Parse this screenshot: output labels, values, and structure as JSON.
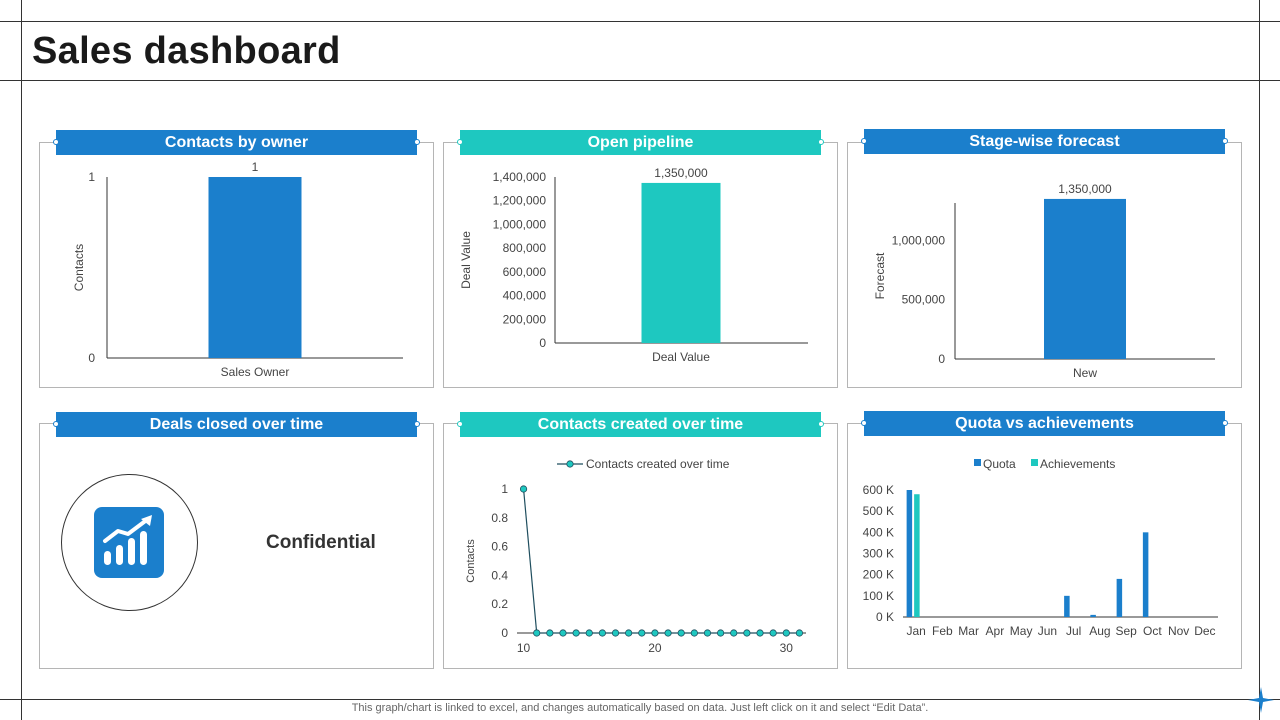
{
  "page": {
    "title": "Sales dashboard",
    "footer": "This graph/chart is linked to excel,  and changes automatically based on data. Just left click on it and select “Edit Data”."
  },
  "colors": {
    "blue": "#1b7fcc",
    "teal": "#1ec8c0",
    "dark_teal": "#16a39c",
    "line": "#1f4e5e"
  },
  "panels": {
    "contacts_by_owner": {
      "title": "Contacts by owner"
    },
    "open_pipeline": {
      "title": "Open pipeline"
    },
    "stage_forecast": {
      "title": "Stage-wise forecast"
    },
    "deals_closed": {
      "title": "Deals closed over time",
      "label": "Confidential",
      "icon": "growth-chart-icon"
    },
    "contacts_created": {
      "title": "Contacts created over time"
    },
    "quota_vs_achievements": {
      "title": "Quota vs achievements"
    }
  },
  "chart_data": [
    {
      "id": "contacts_by_owner",
      "type": "bar",
      "categories": [
        "Sales Owner"
      ],
      "values": [
        1
      ],
      "data_labels": [
        "1"
      ],
      "xlabel": "Sales Owner",
      "ylabel": "Contacts",
      "ylim": [
        0,
        1
      ],
      "yticks": [
        0,
        1
      ],
      "ytick_labels": [
        "0",
        "1"
      ]
    },
    {
      "id": "open_pipeline",
      "type": "bar",
      "categories": [
        "Deal Value"
      ],
      "values": [
        1350000
      ],
      "data_labels": [
        "1,350,000"
      ],
      "xlabel": "Deal Value",
      "ylabel": "Deal Value",
      "ylim": [
        0,
        1400000
      ],
      "yticks": [
        0,
        200000,
        400000,
        600000,
        800000,
        1000000,
        1200000,
        1400000
      ],
      "ytick_labels": [
        "0",
        "200,000",
        "400,000",
        "600,000",
        "800,000",
        "1,000,000",
        "1,200,000",
        "1,400,000"
      ]
    },
    {
      "id": "stage_forecast",
      "type": "bar",
      "categories": [
        "New"
      ],
      "values": [
        1350000
      ],
      "data_labels": [
        "1,350,000"
      ],
      "xlabel": "",
      "ylabel": "Forecast",
      "ylim": [
        0,
        1400000
      ],
      "yticks": [
        0,
        500000,
        1000000
      ],
      "ytick_labels": [
        "0",
        "500,000",
        "1,000,000"
      ]
    },
    {
      "id": "contacts_created",
      "type": "line",
      "legend": "Contacts created over time",
      "x": [
        10,
        11,
        12,
        13,
        14,
        15,
        16,
        17,
        18,
        19,
        20,
        21,
        22,
        23,
        24,
        25,
        26,
        27,
        28,
        29,
        30,
        31
      ],
      "y": [
        1,
        0,
        0,
        0,
        0,
        0,
        0,
        0,
        0,
        0,
        0,
        0,
        0,
        0,
        0,
        0,
        0,
        0,
        0,
        0,
        0,
        0
      ],
      "ylabel": "Contacts",
      "xlim": [
        9.5,
        31.5
      ],
      "ylim": [
        0,
        1
      ],
      "yticks": [
        0,
        0.2,
        0.4,
        0.6,
        0.8,
        1
      ],
      "ytick_labels": [
        "0",
        "0.2",
        "0.4",
        "0.6",
        "0.8",
        "1"
      ],
      "xticks": [
        10,
        20,
        30
      ],
      "xtick_labels": [
        "10",
        "20",
        "30"
      ]
    },
    {
      "id": "quota_vs_achievements",
      "type": "bar",
      "categories": [
        "Jan",
        "Feb",
        "Mar",
        "Apr",
        "May",
        "Jun",
        "Jul",
        "Aug",
        "Sep",
        "Oct",
        "Nov",
        "Dec"
      ],
      "series": [
        {
          "name": "Quota",
          "values": [
            600000,
            0,
            0,
            0,
            0,
            0,
            100000,
            10000,
            180000,
            400000,
            0,
            0
          ]
        },
        {
          "name": "Achievements",
          "values": [
            580000,
            0,
            0,
            0,
            0,
            0,
            0,
            0,
            0,
            0,
            0,
            0
          ]
        }
      ],
      "ylim": [
        0,
        600000
      ],
      "yticks": [
        0,
        100000,
        200000,
        300000,
        400000,
        500000,
        600000
      ],
      "ytick_labels": [
        "0 K",
        "100 K",
        "200 K",
        "300 K",
        "400 K",
        "500 K",
        "600 K"
      ]
    }
  ]
}
